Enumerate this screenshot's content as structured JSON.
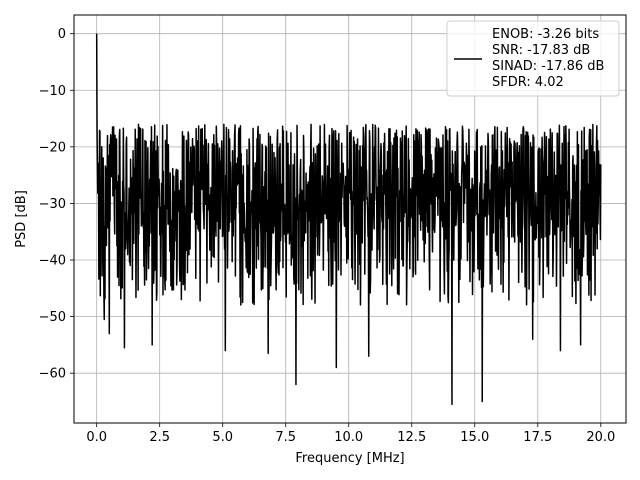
{
  "chart_data": {
    "type": "line",
    "title": "",
    "xlabel": "Frequency [MHz]",
    "ylabel": "PSD [dB]",
    "xlim": [
      -0.9,
      21.0
    ],
    "ylim": [
      -68.8,
      3.3
    ],
    "xticks": [
      0.0,
      2.5,
      5.0,
      7.5,
      10.0,
      12.5,
      15.0,
      17.5,
      20.0
    ],
    "xtick_labels": [
      "0.0",
      "2.5",
      "5.0",
      "7.5",
      "10.0",
      "12.5",
      "15.0",
      "17.5",
      "20.0"
    ],
    "yticks": [
      0,
      -10,
      -20,
      -30,
      -40,
      -50,
      -60
    ],
    "ytick_labels": [
      "0",
      "−10",
      "−20",
      "−30",
      "−40",
      "−50",
      "−60"
    ],
    "grid": true,
    "line_color": "#000000",
    "legend": {
      "placement": "upper right",
      "lines": [
        "ENOB: -3.26 bits",
        "SNR: -17.83 dB",
        "SINAD: -17.86 dB",
        "SFDR: 4.02"
      ]
    },
    "series": [
      {
        "x_start": 0.0,
        "x_end": 20.0,
        "noise_floor_mean_db": -30,
        "noise_upper_db": -16,
        "noise_lower_db": -43,
        "peaks": [
          {
            "x": 0.0,
            "y": 0.0
          }
        ],
        "deep_dips": [
          {
            "x": 0.3,
            "y": -50.5
          },
          {
            "x": 0.5,
            "y": -53
          },
          {
            "x": 1.1,
            "y": -55.5
          },
          {
            "x": 2.2,
            "y": -55
          },
          {
            "x": 5.1,
            "y": -56
          },
          {
            "x": 6.8,
            "y": -56.5
          },
          {
            "x": 7.9,
            "y": -62
          },
          {
            "x": 9.5,
            "y": -59
          },
          {
            "x": 10.8,
            "y": -57
          },
          {
            "x": 14.1,
            "y": -65.5
          },
          {
            "x": 15.3,
            "y": -65
          },
          {
            "x": 17.3,
            "y": -54
          },
          {
            "x": 18.4,
            "y": -56
          },
          {
            "x": 19.2,
            "y": -55
          }
        ]
      }
    ]
  }
}
